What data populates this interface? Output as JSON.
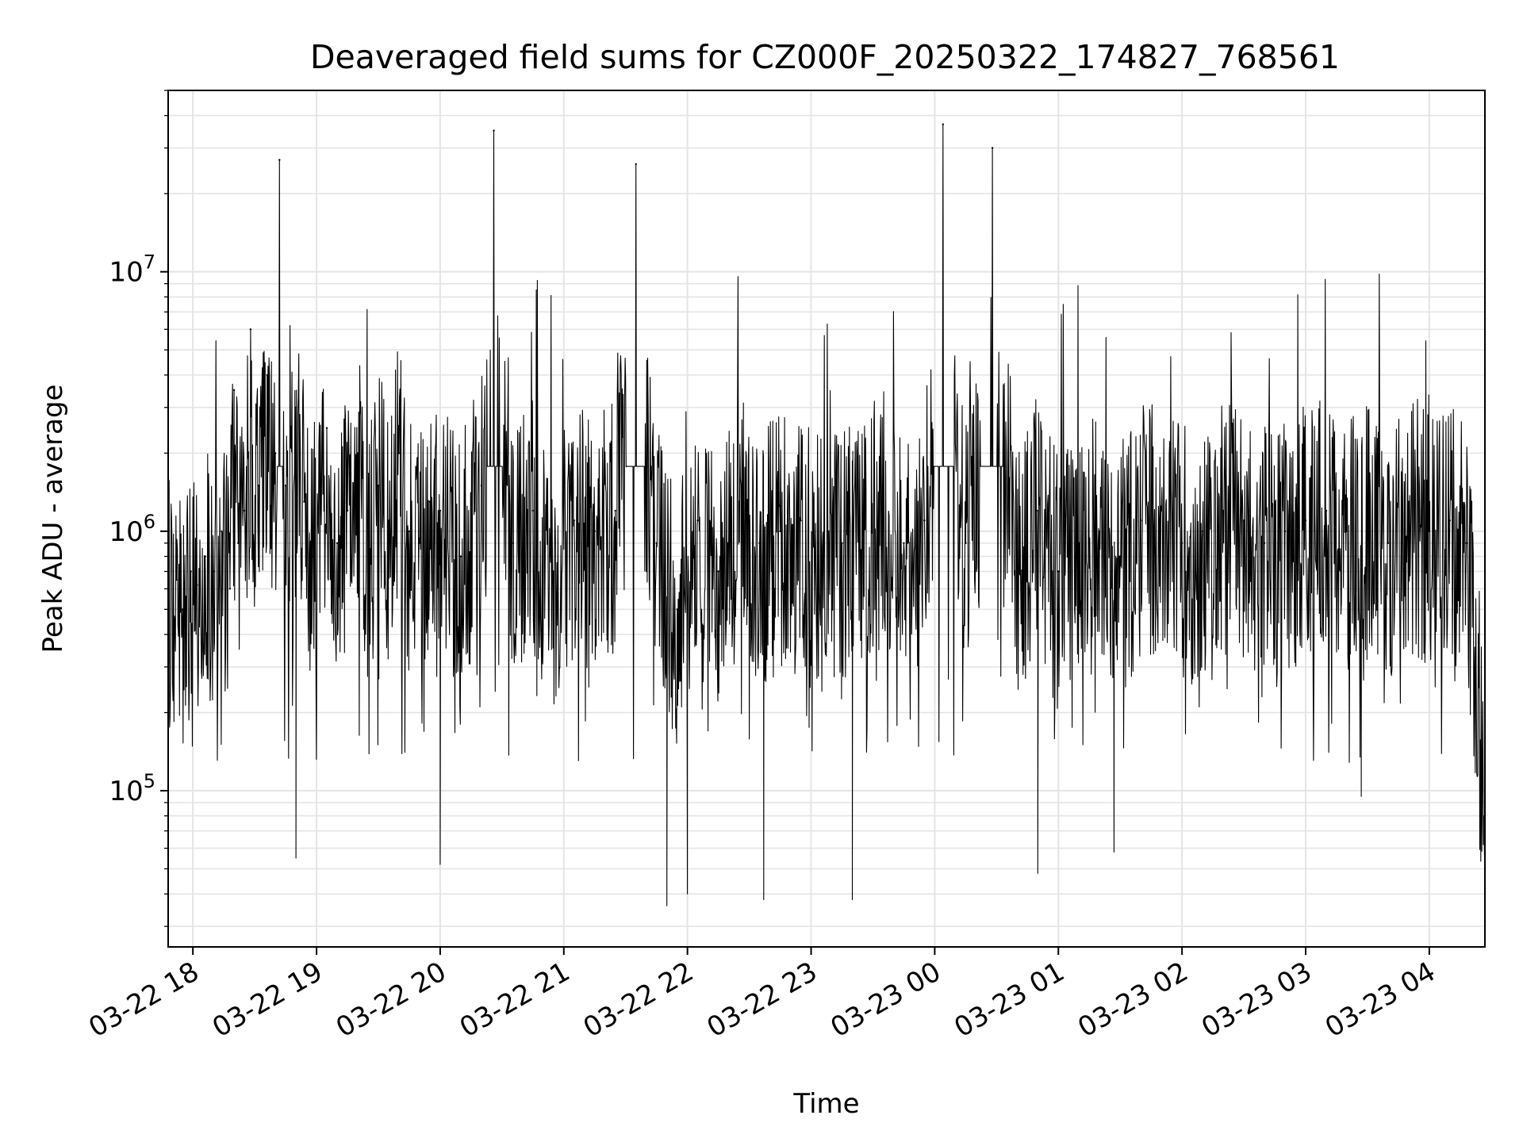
{
  "chart_data": {
    "type": "line",
    "title": "Deaveraged field sums for CZ000F_20250322_174827_768561",
    "xlabel": "Time",
    "ylabel": "Peak ADU - average",
    "yscale": "log",
    "ylim": [
      25000,
      50000000
    ],
    "xlim": [
      "2025-03-22 17:48",
      "2025-03-23 04:27"
    ],
    "grid": true,
    "legend": "none",
    "line_color": "#000000",
    "x_ticks": [
      {
        "value": "2025-03-22 18:00",
        "label": "03-22 18"
      },
      {
        "value": "2025-03-22 19:00",
        "label": "03-22 19"
      },
      {
        "value": "2025-03-22 20:00",
        "label": "03-22 20"
      },
      {
        "value": "2025-03-22 21:00",
        "label": "03-22 21"
      },
      {
        "value": "2025-03-22 22:00",
        "label": "03-22 22"
      },
      {
        "value": "2025-03-22 23:00",
        "label": "03-22 23"
      },
      {
        "value": "2025-03-23 00:00",
        "label": "03-23 00"
      },
      {
        "value": "2025-03-23 01:00",
        "label": "03-23 01"
      },
      {
        "value": "2025-03-23 02:00",
        "label": "03-23 02"
      },
      {
        "value": "2025-03-23 03:00",
        "label": "03-23 03"
      },
      {
        "value": "2025-03-23 04:00",
        "label": "03-23 04"
      }
    ],
    "y_ticks": [
      {
        "value": 100000,
        "base": "10",
        "exp": "5"
      },
      {
        "value": 1000000,
        "base": "10",
        "exp": "6"
      },
      {
        "value": 10000000,
        "base": "10",
        "exp": "7"
      }
    ],
    "series": [
      {
        "x": [
          "2025-03-22 17:48",
          "2025-03-22 17:52",
          "2025-03-22 17:55",
          "2025-03-22 17:59",
          "2025-03-22 18:02",
          "2025-03-22 18:06",
          "2025-03-22 18:10",
          "2025-03-22 18:14",
          "2025-03-22 18:18",
          "2025-03-22 18:20",
          "2025-03-22 18:22",
          "2025-03-22 18:25",
          "2025-03-22 18:28",
          "2025-03-22 18:32",
          "2025-03-22 18:36",
          "2025-03-22 18:40",
          "2025-03-22 18:42",
          "2025-03-22 18:45",
          "2025-03-22 18:50",
          "2025-03-22 18:54",
          "2025-03-22 18:58",
          "2025-03-22 19:05",
          "2025-03-22 19:10",
          "2025-03-22 19:15",
          "2025-03-22 19:20",
          "2025-03-22 19:25",
          "2025-03-22 19:30",
          "2025-03-22 19:35",
          "2025-03-22 19:40",
          "2025-03-22 19:45",
          "2025-03-22 19:50",
          "2025-03-22 19:55",
          "2025-03-22 20:00",
          "2025-03-22 20:10",
          "2025-03-22 20:20",
          "2025-03-22 20:26",
          "2025-03-22 20:35",
          "2025-03-22 20:45",
          "2025-03-22 20:55",
          "2025-03-22 21:05",
          "2025-03-22 21:15",
          "2025-03-22 21:25",
          "2025-03-22 21:35",
          "2025-03-22 21:45",
          "2025-03-22 21:55",
          "2025-03-22 22:05",
          "2025-03-22 22:15",
          "2025-03-22 22:25",
          "2025-03-22 22:35",
          "2025-03-22 22:45",
          "2025-03-22 22:55",
          "2025-03-22 23:05",
          "2025-03-22 23:15",
          "2025-03-22 23:25",
          "2025-03-22 23:35",
          "2025-03-22 23:45",
          "2025-03-22 23:55",
          "2025-03-23 00:04",
          "2025-03-23 00:15",
          "2025-03-23 00:28",
          "2025-03-23 00:40",
          "2025-03-23 00:50",
          "2025-03-23 01:00",
          "2025-03-23 01:10",
          "2025-03-23 01:20",
          "2025-03-23 01:30",
          "2025-03-23 01:40",
          "2025-03-23 01:50",
          "2025-03-23 02:00",
          "2025-03-23 02:10",
          "2025-03-23 02:20",
          "2025-03-23 02:30",
          "2025-03-23 02:40",
          "2025-03-23 02:50",
          "2025-03-23 03:00",
          "2025-03-23 03:10",
          "2025-03-23 03:20",
          "2025-03-23 03:30",
          "2025-03-23 03:40",
          "2025-03-23 03:50",
          "2025-03-23 04:00",
          "2025-03-23 04:10",
          "2025-03-23 04:18",
          "2025-03-23 04:24",
          "2025-03-23 04:27"
        ],
        "y": [
          550000,
          650000,
          500000,
          700000,
          620000,
          800000,
          700000,
          1000000,
          600000,
          3500000,
          900000,
          1200000,
          6000000,
          1500000,
          4000000,
          2000000,
          27000000,
          1500000,
          3000000,
          1300000,
          800000,
          2500000,
          900000,
          1200000,
          2000000,
          800000,
          1500000,
          1100000,
          2000000,
          1000000,
          900000,
          1300000,
          1200000,
          800000,
          1500000,
          35000000,
          900000,
          1200000,
          700000,
          1100000,
          1000000,
          1200000,
          26000000,
          900000,
          500000,
          1100000,
          700000,
          1300000,
          900000,
          1000000,
          1100000,
          800000,
          900000,
          1000000,
          1300000,
          900000,
          1100000,
          37000000,
          900000,
          30000000,
          800000,
          1200000,
          700000,
          900000,
          1000000,
          800000,
          1100000,
          1200000,
          900000,
          1000000,
          1200000,
          1100000,
          900000,
          1000000,
          1100000,
          1200000,
          1000000,
          1100000,
          900000,
          1300000,
          1000000,
          1100000,
          900000,
          250000,
          50000
        ],
        "dips": [
          {
            "x": "2025-03-22 18:50",
            "y": 55000
          },
          {
            "x": "2025-03-22 20:00",
            "y": 52000
          },
          {
            "x": "2025-03-22 21:50",
            "y": 36000
          },
          {
            "x": "2025-03-22 22:00",
            "y": 40000
          },
          {
            "x": "2025-03-22 22:37",
            "y": 38000
          },
          {
            "x": "2025-03-22 23:20",
            "y": 38000
          },
          {
            "x": "2025-03-23 00:50",
            "y": 48000
          },
          {
            "x": "2025-03-23 01:27",
            "y": 58000
          },
          {
            "x": "2025-03-23 03:27",
            "y": 95000
          }
        ]
      }
    ]
  }
}
